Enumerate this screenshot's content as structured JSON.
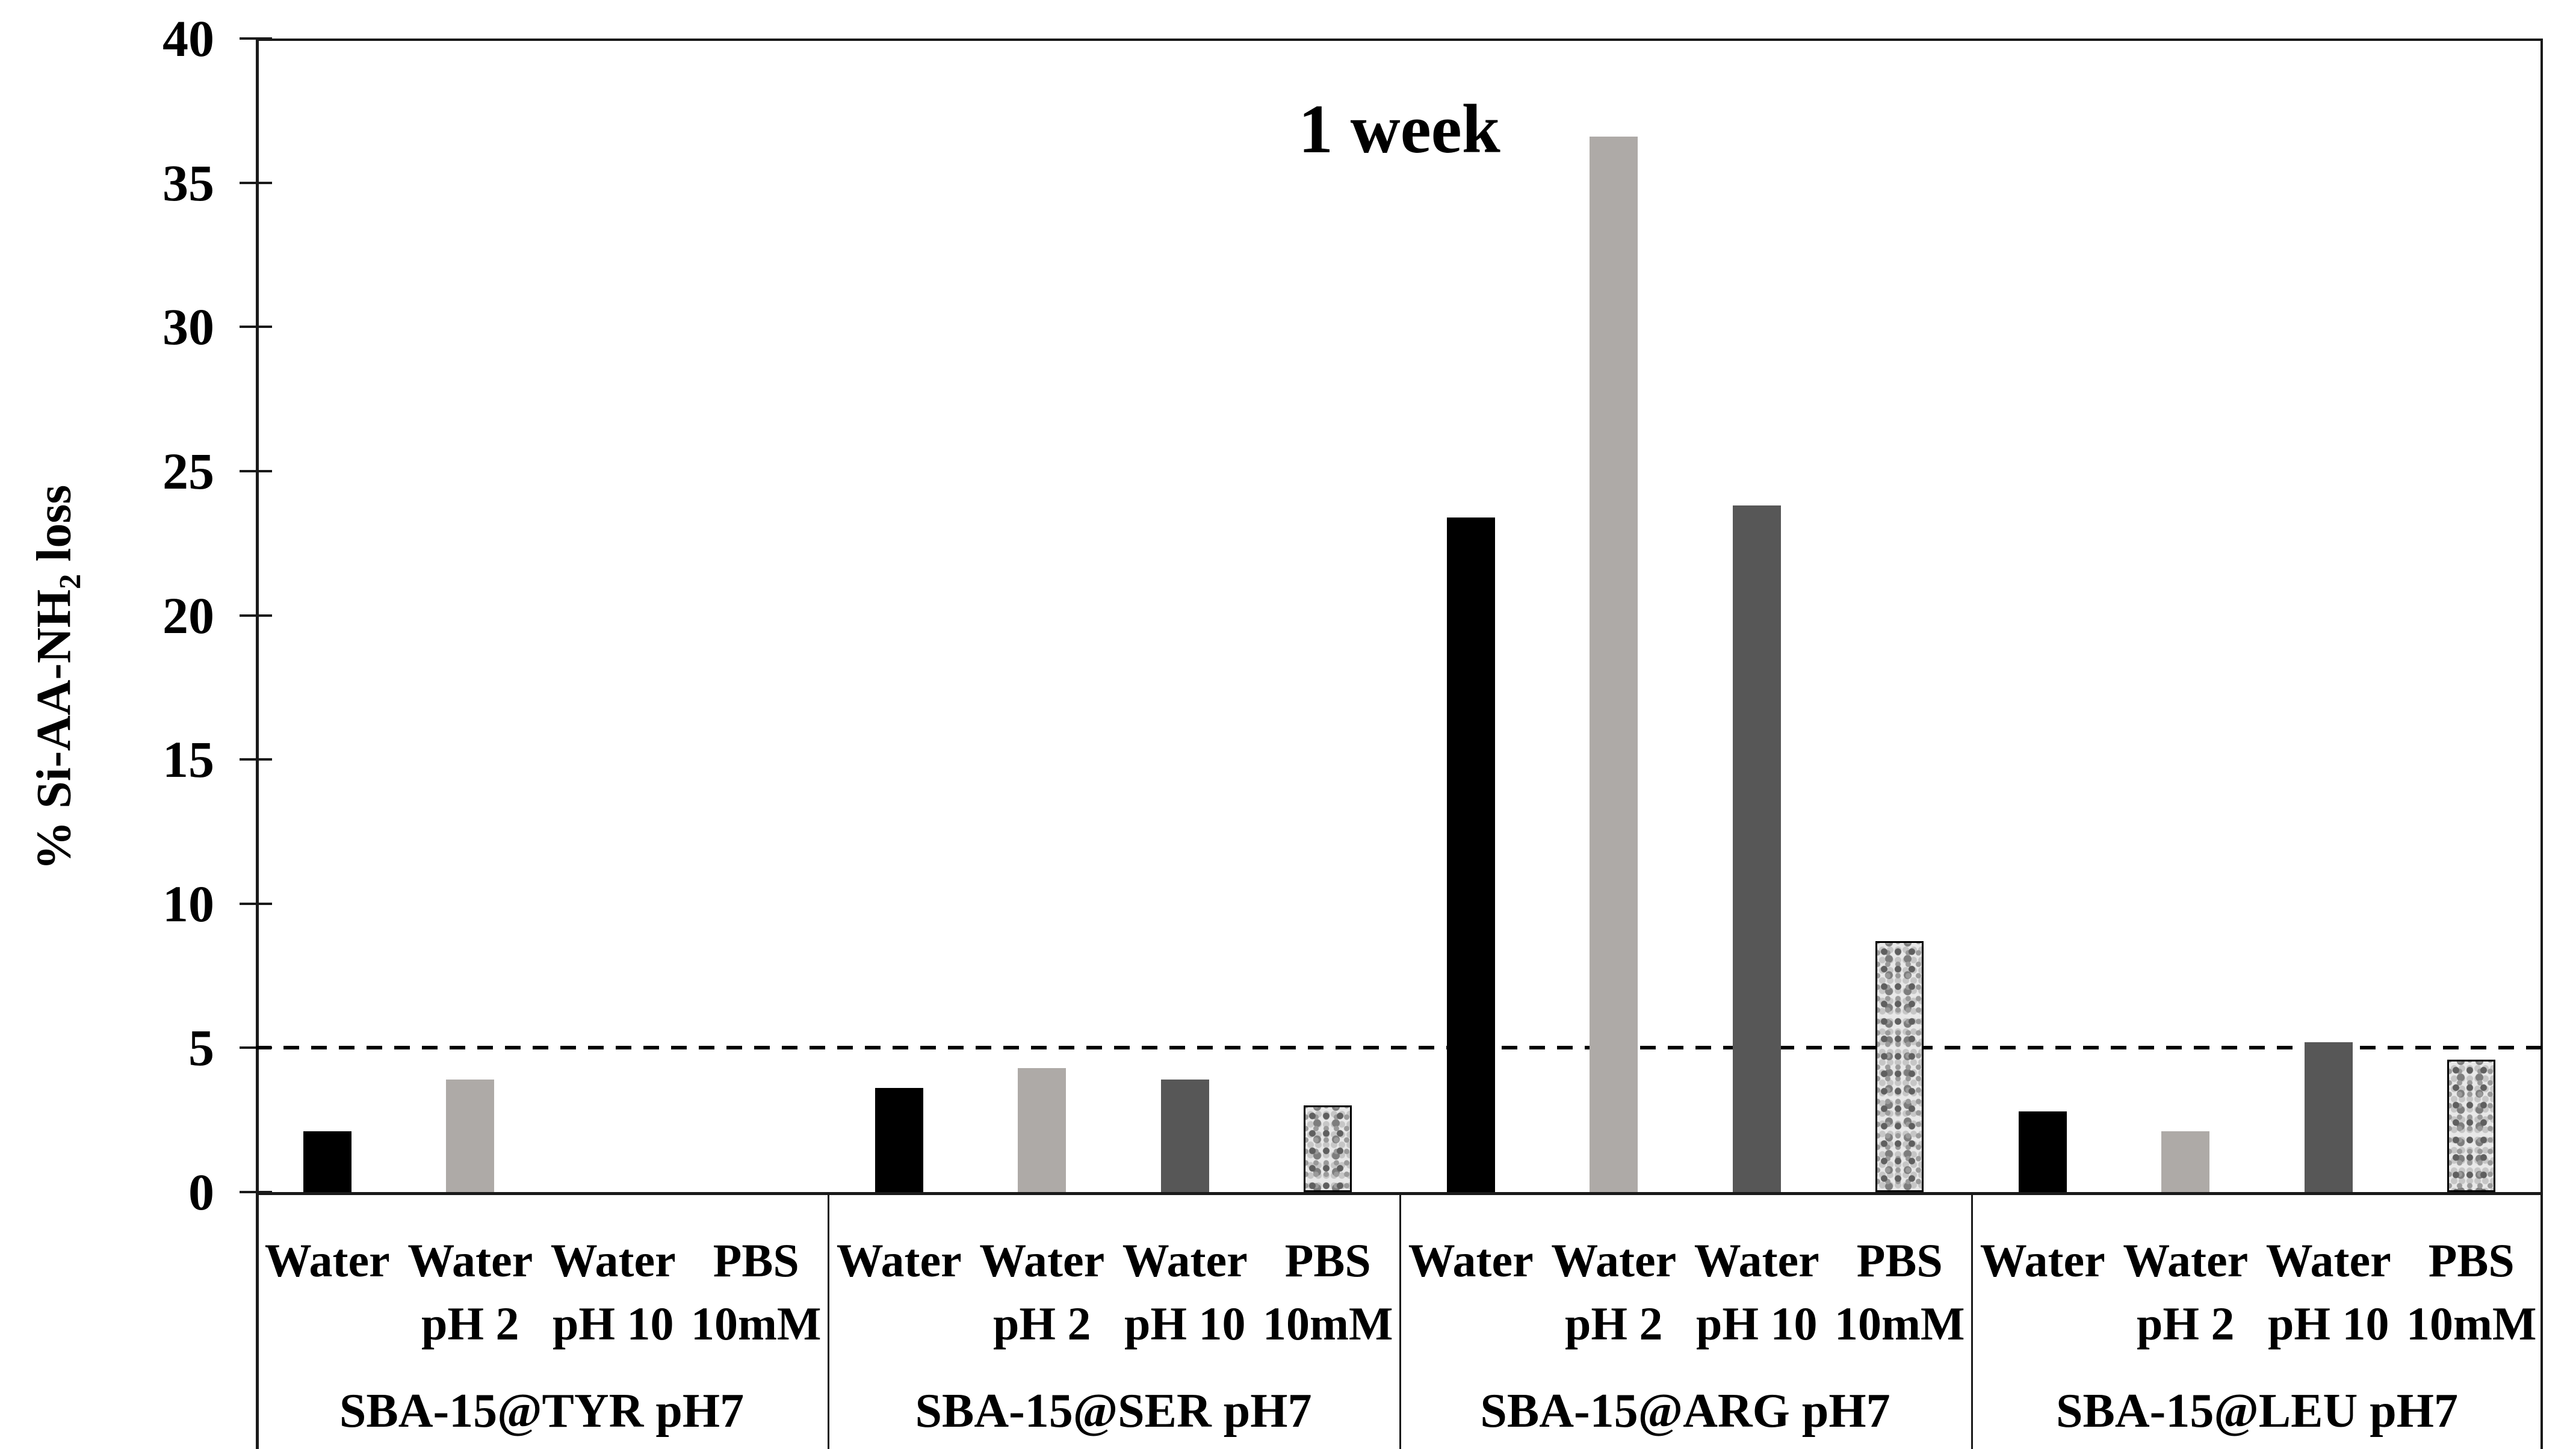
{
  "chart_data": {
    "type": "bar",
    "title": "1 week",
    "ylabel": "% Si-AA-NH2 loss",
    "ylabel_parts": {
      "prefix": "% Si-AA-NH",
      "sub": "2",
      "suffix": " loss"
    },
    "ylim": [
      0,
      40
    ],
    "ytick_step": 5,
    "ytick_labels": [
      "0",
      "5",
      "10",
      "15",
      "20",
      "25",
      "30",
      "35",
      "40"
    ],
    "reference_line_y": 5,
    "reference_line_style": "dashed",
    "grid": false,
    "legend": "none",
    "conditions": [
      {
        "label_line1": "Water",
        "label_line2": "",
        "style": "black"
      },
      {
        "label_line1": "Water",
        "label_line2": "pH 2",
        "style": "lightgray"
      },
      {
        "label_line1": "Water",
        "label_line2": "pH 10",
        "style": "darkgray"
      },
      {
        "label_line1": "PBS",
        "label_line2": "10mM",
        "style": "pattern"
      }
    ],
    "groups": [
      {
        "label": "SBA-15@TYR pH7",
        "values": [
          2.1,
          3.9,
          0,
          0
        ]
      },
      {
        "label": "SBA-15@SER pH7",
        "values": [
          3.6,
          4.3,
          3.9,
          3.0
        ]
      },
      {
        "label": "SBA-15@ARG pH7",
        "values": [
          23.4,
          36.6,
          23.8,
          8.7
        ]
      },
      {
        "label": "SBA-15@LEU pH7",
        "values": [
          2.8,
          2.1,
          5.2,
          4.6
        ]
      }
    ],
    "colors": {
      "bar_black": "#000000",
      "bar_lightgray": "#aeaaa7",
      "bar_darkgray": "#575757",
      "pattern_base": "#e8e8e8",
      "pattern_speckle": "#6f6f6f",
      "axis": "#1a1a1a",
      "reference_line": "#000000"
    }
  }
}
